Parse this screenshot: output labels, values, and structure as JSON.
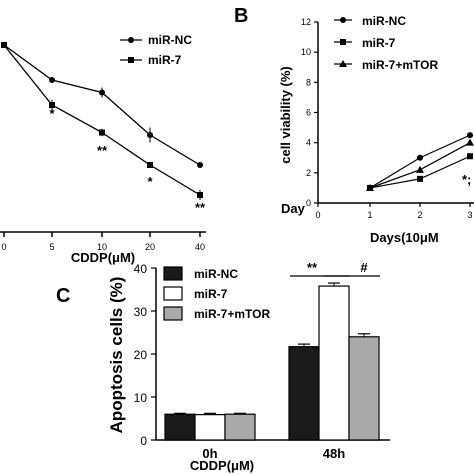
{
  "chart_data": [
    {
      "panel": "",
      "type": "line",
      "xlabel": "CDDP(μM)",
      "ylabel": "",
      "x": [
        0,
        5,
        10,
        20,
        40
      ],
      "x_tick_labels": [
        "0",
        "5",
        "10",
        "20",
        "40"
      ],
      "series": [
        {
          "name": "miR-NC",
          "marker": "circle",
          "values": [
            100,
            86,
            81,
            64,
            52
          ],
          "errors": [
            0,
            1.2,
            2,
            3,
            1
          ]
        },
        {
          "name": "miR-7",
          "marker": "square",
          "values": [
            100,
            76,
            65,
            52,
            40
          ],
          "errors": [
            0,
            2,
            1.5,
            1,
            2
          ]
        }
      ],
      "annotations": [
        {
          "x": "5",
          "text": "*"
        },
        {
          "x": "10",
          "text": "**"
        },
        {
          "x": "20",
          "text": "*"
        },
        {
          "x": "40",
          "text": "**"
        }
      ],
      "legend_position": "top-right"
    },
    {
      "panel": "B",
      "type": "line",
      "xlabel": "Days(10μM",
      "x_axis_left_label": "Day",
      "ylabel": "cell viability (%)",
      "ylim": [
        0,
        12
      ],
      "y_ticks": [
        0,
        2,
        4,
        6,
        8,
        10,
        12
      ],
      "x": [
        0,
        1,
        2,
        3
      ],
      "x_tick_labels": [
        "0",
        "1",
        "2",
        "3"
      ],
      "series": [
        {
          "name": "miR-NC",
          "marker": "circle",
          "values": [
            null,
            1,
            3,
            4.5
          ]
        },
        {
          "name": "miR-7",
          "marker": "square",
          "values": [
            null,
            1,
            1.6,
            3.1
          ]
        },
        {
          "name": "miR-7+mTOR",
          "marker": "triangle",
          "values": [
            null,
            1,
            2.2,
            4.0
          ]
        }
      ],
      "annotations": [
        {
          "x": "3",
          "text": "*;"
        }
      ],
      "legend_position": "top-left"
    },
    {
      "panel": "C",
      "type": "bar",
      "xlabel": "CDDP(μM)",
      "ylabel": "Apoptosis cells (%)",
      "ylim": [
        0,
        40
      ],
      "y_ticks": [
        0,
        10,
        20,
        30,
        40
      ],
      "categories": [
        "0h",
        "48h"
      ],
      "series": [
        {
          "name": "miR-NC",
          "color": "#1a1a1a",
          "values": [
            6,
            21.7
          ],
          "errors": [
            0.2,
            0.6
          ]
        },
        {
          "name": "miR-7",
          "color": "#ffffff",
          "values": [
            5.9,
            35.8
          ],
          "errors": [
            0.3,
            0.7
          ]
        },
        {
          "name": "miR-7+mTOR",
          "color": "#aaaaaa",
          "values": [
            6,
            24
          ],
          "errors": [
            0.2,
            0.7
          ]
        }
      ],
      "annotations": [
        {
          "between": [
            "miR-NC",
            "miR-7"
          ],
          "category": "48h",
          "text": "**"
        },
        {
          "between": [
            "miR-7",
            "miR-7+mTOR"
          ],
          "category": "48h",
          "text": "#"
        }
      ],
      "legend_position": "top-left"
    }
  ]
}
